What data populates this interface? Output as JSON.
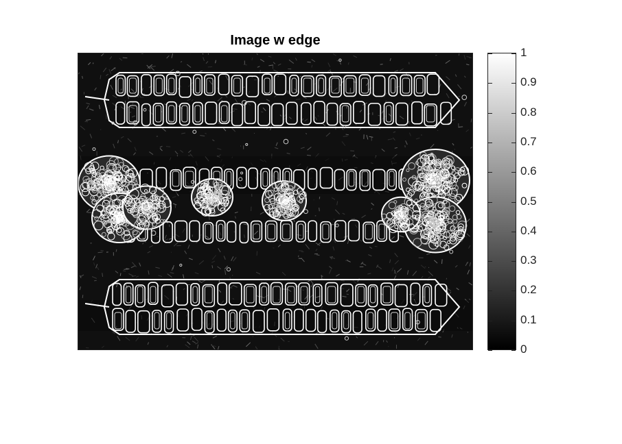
{
  "figure": {
    "title": "Image w edge"
  },
  "image": {
    "icon": "edge-detected-aerial-photo",
    "background_color": "#101010",
    "edge_color": "#ffffff"
  },
  "colorbar": {
    "colormap": "gray",
    "min": 0,
    "max": 1,
    "ticks": [
      "1",
      "0.9",
      "0.8",
      "0.7",
      "0.6",
      "0.5",
      "0.4",
      "0.3",
      "0.2",
      "0.1",
      "0"
    ]
  }
}
